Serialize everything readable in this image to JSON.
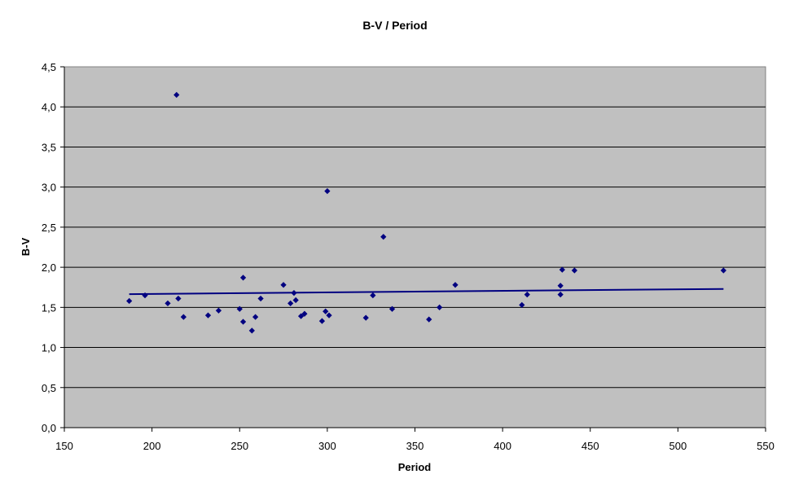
{
  "chart_data": {
    "type": "scatter",
    "title": "B-V / Period",
    "xlabel": "Period",
    "ylabel": "B-V",
    "xlim": [
      150,
      550
    ],
    "ylim": [
      0,
      4.5
    ],
    "x_ticks": [
      "150",
      "200",
      "250",
      "300",
      "350",
      "400",
      "450",
      "500",
      "550"
    ],
    "y_ticks": [
      "0,0",
      "0,5",
      "1,0",
      "1,5",
      "2,0",
      "2,5",
      "3,0",
      "3,5",
      "4,0",
      "4,5"
    ],
    "grid": "horizontal",
    "plot_background": "#c0c0c0",
    "marker_color": "#000080",
    "points": [
      [
        187,
        1.58
      ],
      [
        196,
        1.65
      ],
      [
        209,
        1.55
      ],
      [
        214,
        4.15
      ],
      [
        215,
        1.61
      ],
      [
        218,
        1.38
      ],
      [
        232,
        1.4
      ],
      [
        238,
        1.46
      ],
      [
        250,
        1.48
      ],
      [
        252,
        1.87
      ],
      [
        252,
        1.32
      ],
      [
        257,
        1.21
      ],
      [
        259,
        1.38
      ],
      [
        262,
        1.61
      ],
      [
        275,
        1.78
      ],
      [
        279,
        1.55
      ],
      [
        281,
        1.68
      ],
      [
        282,
        1.59
      ],
      [
        285,
        1.39
      ],
      [
        287,
        1.42
      ],
      [
        297,
        1.33
      ],
      [
        299,
        1.45
      ],
      [
        300,
        2.95
      ],
      [
        301,
        1.4
      ],
      [
        322,
        1.37
      ],
      [
        326,
        1.65
      ],
      [
        332,
        2.38
      ],
      [
        337,
        1.48
      ],
      [
        358,
        1.35
      ],
      [
        364,
        1.5
      ],
      [
        373,
        1.78
      ],
      [
        411,
        1.53
      ],
      [
        414,
        1.66
      ],
      [
        433,
        1.66
      ],
      [
        433,
        1.77
      ],
      [
        434,
        1.97
      ],
      [
        441,
        1.96
      ],
      [
        526,
        1.96
      ]
    ],
    "trendline": {
      "type": "linear",
      "x": [
        187,
        526
      ],
      "y": [
        1.665,
        1.73
      ],
      "color": "#000080"
    }
  }
}
